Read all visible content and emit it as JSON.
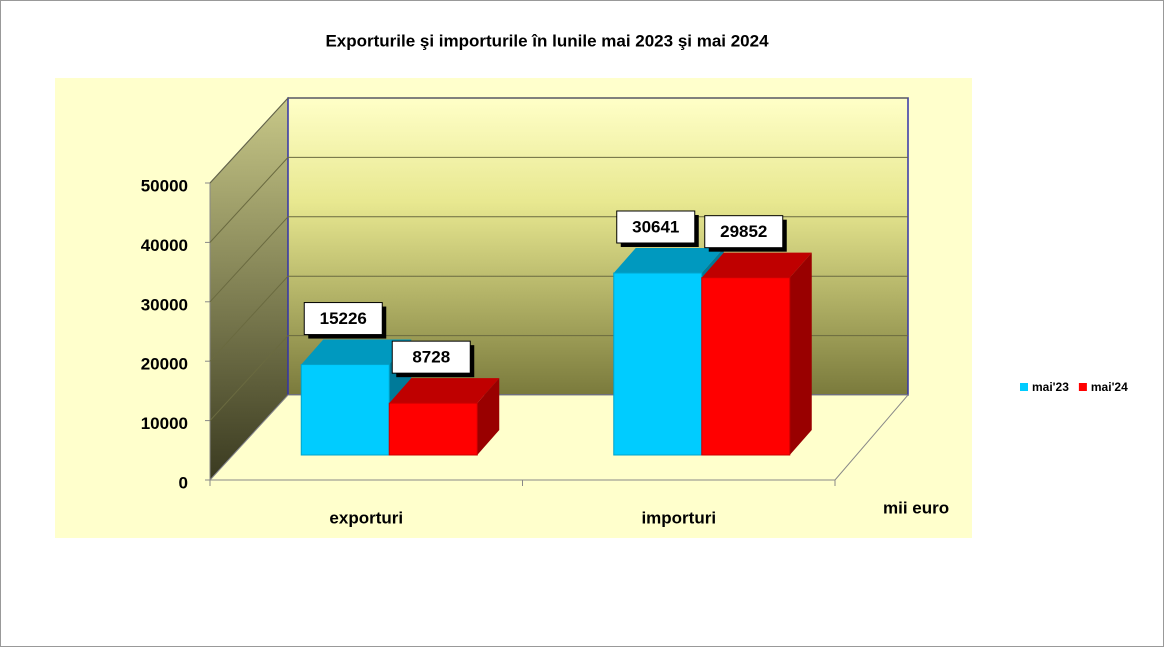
{
  "chart_data": {
    "type": "bar3d",
    "title": "Exporturile  şi importurile în lunile  mai 2023 şi mai 2024",
    "categories": [
      "exporturi",
      "importuri"
    ],
    "series": [
      {
        "name": "mai'23",
        "color": "#00ccff",
        "values": [
          15226,
          30641
        ]
      },
      {
        "name": "mai'24",
        "color": "#ff0000",
        "values": [
          8728,
          29852
        ]
      }
    ],
    "ylim": [
      0,
      50000
    ],
    "yticks": [
      0,
      10000,
      20000,
      30000,
      40000,
      50000
    ],
    "unit_label": "mii euro",
    "grid": true,
    "legend": "right",
    "data_labels": true
  }
}
